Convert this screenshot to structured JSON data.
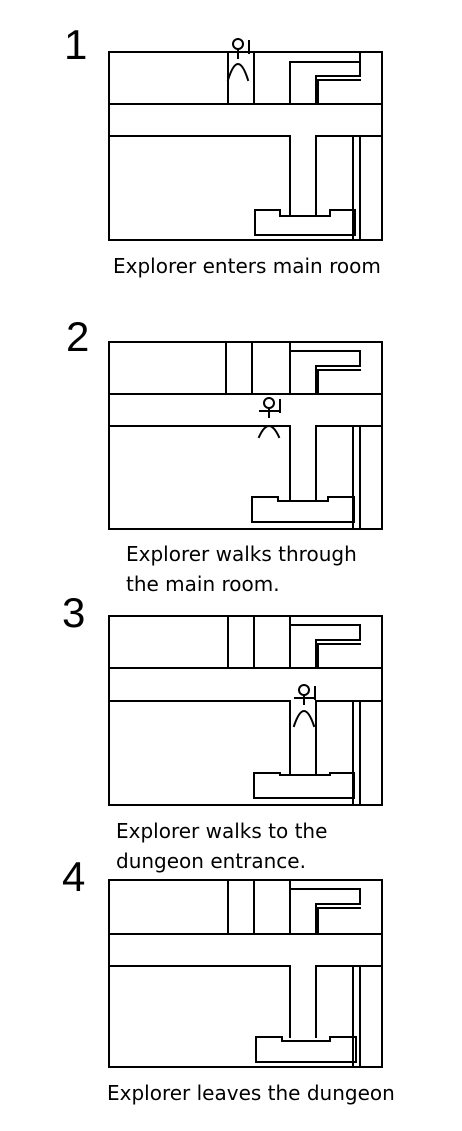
{
  "panels": [
    {
      "number": "1",
      "caption": "Explorer enters main room"
    },
    {
      "number": "2",
      "caption": "Explorer walks through\nthe main room."
    },
    {
      "number": "3",
      "caption": "Explorer walks to the\ndungeon entrance."
    },
    {
      "number": "4",
      "caption": "Explorer leaves the dungeon"
    }
  ],
  "icons": {
    "explorer": "stick-figure-explorer-icon"
  }
}
